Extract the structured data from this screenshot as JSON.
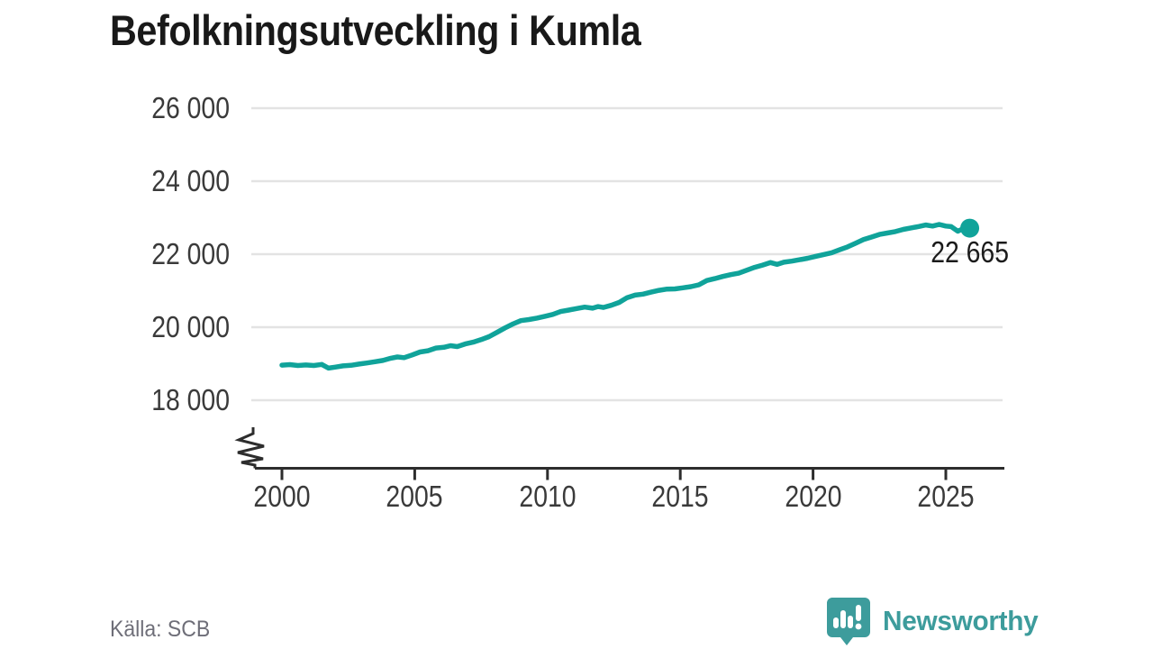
{
  "header": {
    "title": "Befolkningsutveckling i Kumla"
  },
  "footer": {
    "source": "Källa: SCB",
    "logo_text": "Newsworthy"
  },
  "colors": {
    "line": "#10a39a",
    "dot": "#10a39a",
    "grid": "#e3e3e3",
    "axis": "#2d2d2d",
    "tick_text": "#3a3a3a",
    "title_text": "#191919",
    "source_text": "#6e6e78",
    "logo": "#3d9c9c"
  },
  "chart_data": {
    "type": "line",
    "title": "Befolkningsutveckling i Kumla",
    "xlabel": "",
    "ylabel": "",
    "source": "Källa: SCB",
    "grid": "horizontal",
    "legend": "none",
    "axis_break": true,
    "xlim": [
      1999.0,
      2027.2
    ],
    "ylim": [
      18000,
      26000
    ],
    "xticks": [
      2000,
      2005,
      2010,
      2015,
      2020,
      2025
    ],
    "xtick_labels": [
      "2000",
      "2005",
      "2010",
      "2015",
      "2020",
      "2025"
    ],
    "yticks": [
      18000,
      20000,
      22000,
      24000,
      26000
    ],
    "ytick_labels": [
      "18 000",
      "20 000",
      "22 000",
      "24 000",
      "26 000"
    ],
    "end_label": "22 665",
    "end_value": 22665,
    "points": [
      [
        2000.0,
        18960
      ],
      [
        2000.3,
        18975
      ],
      [
        2000.6,
        18950
      ],
      [
        2000.9,
        18965
      ],
      [
        2001.2,
        18950
      ],
      [
        2001.5,
        18980
      ],
      [
        2001.75,
        18880
      ],
      [
        2002.0,
        18905
      ],
      [
        2002.3,
        18940
      ],
      [
        2002.6,
        18955
      ],
      [
        2002.9,
        18990
      ],
      [
        2003.2,
        19020
      ],
      [
        2003.5,
        19055
      ],
      [
        2003.8,
        19090
      ],
      [
        2004.1,
        19150
      ],
      [
        2004.35,
        19185
      ],
      [
        2004.6,
        19165
      ],
      [
        2004.9,
        19240
      ],
      [
        2005.2,
        19320
      ],
      [
        2005.5,
        19355
      ],
      [
        2005.8,
        19430
      ],
      [
        2006.1,
        19450
      ],
      [
        2006.35,
        19495
      ],
      [
        2006.6,
        19470
      ],
      [
        2006.9,
        19540
      ],
      [
        2007.2,
        19590
      ],
      [
        2007.5,
        19660
      ],
      [
        2007.8,
        19740
      ],
      [
        2008.1,
        19860
      ],
      [
        2008.4,
        19980
      ],
      [
        2008.7,
        20090
      ],
      [
        2009.0,
        20180
      ],
      [
        2009.3,
        20210
      ],
      [
        2009.6,
        20250
      ],
      [
        2009.9,
        20300
      ],
      [
        2010.2,
        20350
      ],
      [
        2010.5,
        20430
      ],
      [
        2010.8,
        20470
      ],
      [
        2011.1,
        20510
      ],
      [
        2011.4,
        20550
      ],
      [
        2011.7,
        20520
      ],
      [
        2011.9,
        20565
      ],
      [
        2012.1,
        20540
      ],
      [
        2012.4,
        20600
      ],
      [
        2012.7,
        20680
      ],
      [
        2013.0,
        20810
      ],
      [
        2013.3,
        20880
      ],
      [
        2013.6,
        20905
      ],
      [
        2013.9,
        20960
      ],
      [
        2014.2,
        21010
      ],
      [
        2014.5,
        21045
      ],
      [
        2014.8,
        21050
      ],
      [
        2015.1,
        21080
      ],
      [
        2015.4,
        21110
      ],
      [
        2015.7,
        21160
      ],
      [
        2016.0,
        21280
      ],
      [
        2016.3,
        21330
      ],
      [
        2016.6,
        21390
      ],
      [
        2016.9,
        21440
      ],
      [
        2017.2,
        21480
      ],
      [
        2017.5,
        21560
      ],
      [
        2017.8,
        21640
      ],
      [
        2018.1,
        21700
      ],
      [
        2018.4,
        21770
      ],
      [
        2018.65,
        21720
      ],
      [
        2018.9,
        21780
      ],
      [
        2019.2,
        21810
      ],
      [
        2019.5,
        21850
      ],
      [
        2019.8,
        21890
      ],
      [
        2020.1,
        21940
      ],
      [
        2020.4,
        21990
      ],
      [
        2020.7,
        22040
      ],
      [
        2021.0,
        22120
      ],
      [
        2021.3,
        22200
      ],
      [
        2021.6,
        22300
      ],
      [
        2021.9,
        22400
      ],
      [
        2022.2,
        22470
      ],
      [
        2022.5,
        22540
      ],
      [
        2022.8,
        22580
      ],
      [
        2023.1,
        22620
      ],
      [
        2023.4,
        22680
      ],
      [
        2023.7,
        22720
      ],
      [
        2024.0,
        22760
      ],
      [
        2024.25,
        22800
      ],
      [
        2024.5,
        22770
      ],
      [
        2024.75,
        22815
      ],
      [
        2025.0,
        22770
      ],
      [
        2025.2,
        22755
      ],
      [
        2025.45,
        22630
      ],
      [
        2025.65,
        22700
      ],
      [
        2025.9,
        22665
      ]
    ]
  }
}
